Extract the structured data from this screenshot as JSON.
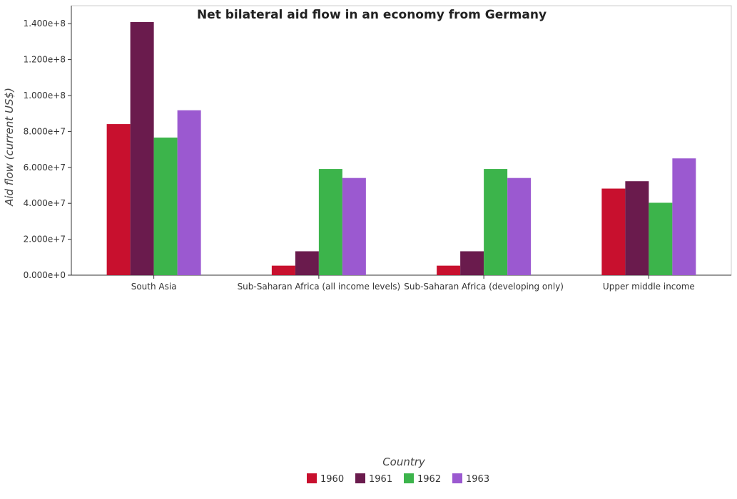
{
  "chart_data": {
    "type": "bar",
    "title": "Net bilateral aid flow in an economy from Germany",
    "xlabel": "Country",
    "ylabel": "Aid flow (current US$)",
    "categories": [
      "South Asia",
      "Sub-Saharan Africa (all income levels)",
      "Sub-Saharan Africa (developing only)",
      "Upper middle income"
    ],
    "series": [
      {
        "name": "1960",
        "color": "#c8102e",
        "values": [
          84100000,
          5300000,
          5300000,
          48200000
        ]
      },
      {
        "name": "1961",
        "color": "#6a1b4d",
        "values": [
          140900000,
          13300000,
          13300000,
          52300000
        ]
      },
      {
        "name": "1962",
        "color": "#3cb44b",
        "values": [
          76600000,
          59100000,
          59100000,
          40300000
        ]
      },
      {
        "name": "1963",
        "color": "#9b59d0",
        "values": [
          91800000,
          54100000,
          54100000,
          65000000
        ]
      }
    ],
    "ylim": [
      0,
      150000000
    ],
    "yticks": [
      0,
      20000000,
      40000000,
      60000000,
      80000000,
      100000000,
      120000000,
      140000000
    ],
    "ytick_labels": [
      "0.000e+0",
      "2.000e+7",
      "4.000e+7",
      "6.000e+7",
      "8.000e+7",
      "1.000e+8",
      "1.200e+8",
      "1.400e+8"
    ],
    "grid": false,
    "legend_position": "bottom-center"
  }
}
